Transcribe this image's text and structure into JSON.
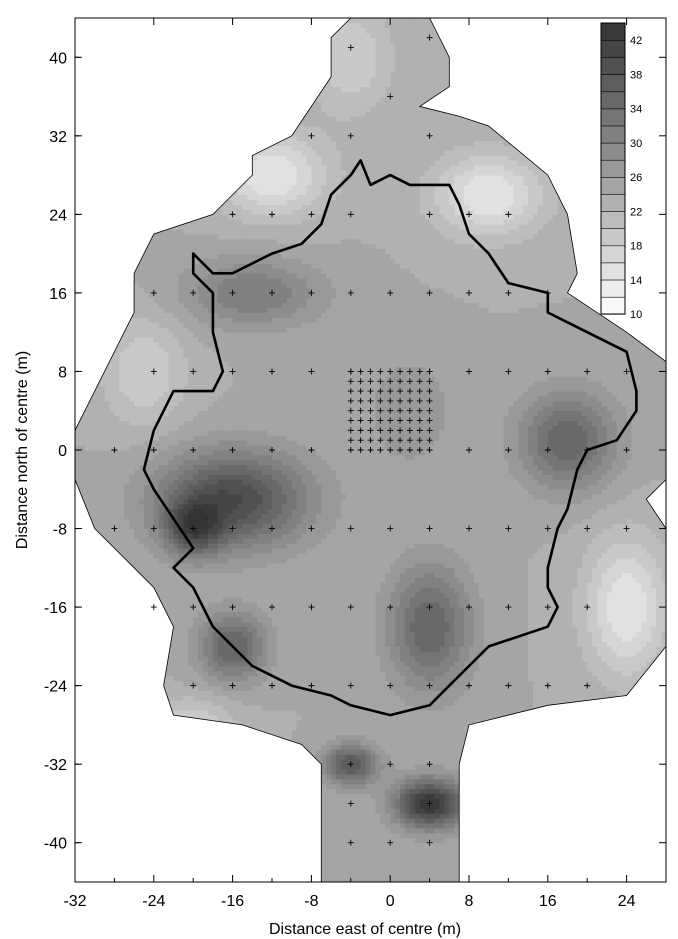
{
  "chart_data": {
    "type": "heatmap",
    "title": "",
    "xlabel": "Distance east of centre (m)",
    "ylabel": "Distance north of centre (m)",
    "xlim": [
      -32,
      28
    ],
    "ylim": [
      -44,
      44
    ],
    "x_ticks": [
      -32,
      -24,
      -16,
      -8,
      0,
      8,
      16,
      24
    ],
    "y_ticks": [
      40,
      32,
      24,
      16,
      8,
      0,
      -8,
      -16,
      -24,
      -32,
      -40
    ],
    "x_tick_labels": [
      "-32",
      "-24",
      "-16",
      "-8",
      "0",
      "8",
      "16",
      "24"
    ],
    "y_tick_labels": [
      "40",
      "32",
      "24",
      "16",
      "8",
      "0",
      "-8",
      "-16",
      "-24",
      "-32",
      "-40"
    ],
    "colorbar": {
      "levels": [
        10,
        12,
        14,
        16,
        18,
        20,
        22,
        24,
        26,
        28,
        30,
        32,
        34,
        36,
        38,
        40,
        42,
        44
      ],
      "labeled_levels": [
        42,
        38,
        34,
        30,
        26,
        22,
        18,
        14,
        10
      ],
      "labels": [
        "42",
        "38",
        "34",
        "30",
        "26",
        "22",
        "18",
        "14",
        "10"
      ],
      "low_color": "#ffffff",
      "high_color": "#333333",
      "placement": "top-right"
    },
    "survey_boundary": [
      [
        -4,
        44
      ],
      [
        4,
        44
      ],
      [
        6,
        40
      ],
      [
        6,
        37
      ],
      [
        3,
        35
      ],
      [
        7,
        34
      ],
      [
        10,
        33
      ],
      [
        16,
        28
      ],
      [
        18,
        24
      ],
      [
        19,
        18
      ],
      [
        18,
        16
      ],
      [
        24,
        12
      ],
      [
        28,
        9
      ],
      [
        28,
        -3
      ],
      [
        26,
        -5
      ],
      [
        28,
        -8
      ],
      [
        28,
        -20
      ],
      [
        24,
        -25
      ],
      [
        16,
        -26
      ],
      [
        8,
        -28
      ],
      [
        7,
        -32
      ],
      [
        7,
        -44
      ],
      [
        -7,
        -44
      ],
      [
        -7,
        -32
      ],
      [
        -9,
        -30
      ],
      [
        -15,
        -28
      ],
      [
        -22,
        -27
      ],
      [
        -23,
        -24
      ],
      [
        -22,
        -18
      ],
      [
        -24,
        -14
      ],
      [
        -26,
        -12
      ],
      [
        -30,
        -8
      ],
      [
        -32,
        -3
      ],
      [
        -32,
        2
      ],
      [
        -28,
        10
      ],
      [
        -26,
        14
      ],
      [
        -26,
        18
      ],
      [
        -24,
        22
      ],
      [
        -18,
        24
      ],
      [
        -14,
        28
      ],
      [
        -14,
        30
      ],
      [
        -10,
        32
      ],
      [
        -6,
        38
      ],
      [
        -6,
        42
      ]
    ],
    "enclosure_outline": [
      [
        -20,
        20
      ],
      [
        -18,
        18
      ],
      [
        -16,
        18
      ],
      [
        -12,
        20
      ],
      [
        -9,
        21
      ],
      [
        -7,
        23
      ],
      [
        -6,
        26
      ],
      [
        -4,
        28
      ],
      [
        -3,
        29.5
      ],
      [
        -2,
        27
      ],
      [
        0,
        28
      ],
      [
        2,
        27
      ],
      [
        4,
        27
      ],
      [
        6,
        27
      ],
      [
        7,
        25
      ],
      [
        8,
        22
      ],
      [
        10,
        20
      ],
      [
        12,
        17
      ],
      [
        16,
        16
      ],
      [
        16,
        14
      ],
      [
        20,
        12
      ],
      [
        24,
        10
      ],
      [
        25,
        6
      ],
      [
        25,
        4
      ],
      [
        23,
        1
      ],
      [
        20,
        0
      ],
      [
        19,
        -2
      ],
      [
        18,
        -6
      ],
      [
        17,
        -8
      ],
      [
        16,
        -12
      ],
      [
        16,
        -14
      ],
      [
        17,
        -16
      ],
      [
        16,
        -18
      ],
      [
        10,
        -20
      ],
      [
        8,
        -22
      ],
      [
        6,
        -24
      ],
      [
        4,
        -26
      ],
      [
        0,
        -27
      ],
      [
        -4,
        -26
      ],
      [
        -6,
        -25
      ],
      [
        -10,
        -24
      ],
      [
        -14,
        -22
      ],
      [
        -18,
        -18
      ],
      [
        -20,
        -14
      ],
      [
        -22,
        -12
      ],
      [
        -20,
        -10
      ],
      [
        -24,
        -4
      ],
      [
        -25,
        -2
      ],
      [
        -24,
        2
      ],
      [
        -22,
        6
      ],
      [
        -18,
        6
      ],
      [
        -17,
        8
      ],
      [
        -18,
        12
      ],
      [
        -18,
        16
      ],
      [
        -20,
        18
      ]
    ],
    "field_peaks": [
      {
        "x": -16,
        "y": -5,
        "value": 40,
        "sx": 5.5,
        "sy": 3.5
      },
      {
        "x": -20,
        "y": -8,
        "value": 36,
        "sx": 2,
        "sy": 2
      },
      {
        "x": 4,
        "y": -36,
        "value": 44,
        "sx": 2.5,
        "sy": 1.8
      },
      {
        "x": -4,
        "y": -32,
        "value": 38,
        "sx": 2,
        "sy": 1.5
      },
      {
        "x": 4,
        "y": -18,
        "value": 36,
        "sx": 3,
        "sy": 4.5
      },
      {
        "x": -16,
        "y": -20,
        "value": 36,
        "sx": 2.5,
        "sy": 2.5
      },
      {
        "x": 18,
        "y": 1,
        "value": 36,
        "sx": 3.5,
        "sy": 3.5
      },
      {
        "x": -14,
        "y": 16,
        "value": 32,
        "sx": 5,
        "sy": 2.5
      },
      {
        "x": 2,
        "y": 4,
        "value": 28,
        "sx": 3,
        "sy": 4
      }
    ],
    "field_troughs": [
      {
        "x": -4,
        "y": 40,
        "value": 18,
        "sx": 3,
        "sy": 4
      },
      {
        "x": -12,
        "y": 28,
        "value": 14,
        "sx": 4,
        "sy": 3
      },
      {
        "x": -25,
        "y": 8,
        "value": 18,
        "sx": 3,
        "sy": 4
      },
      {
        "x": 10,
        "y": 26,
        "value": 14,
        "sx": 4,
        "sy": 3
      },
      {
        "x": 24,
        "y": -16,
        "value": 14,
        "sx": 3,
        "sy": 5
      },
      {
        "x": -20,
        "y": -28,
        "value": 18,
        "sx": 3,
        "sy": 2
      }
    ],
    "field_background": 24,
    "sample_points": [
      [
        -4,
        41
      ],
      [
        4,
        42
      ],
      [
        0,
        36
      ],
      [
        -8,
        32
      ],
      [
        -4,
        32
      ],
      [
        4,
        32
      ],
      [
        -16,
        24
      ],
      [
        -12,
        24
      ],
      [
        -8,
        24
      ],
      [
        -4,
        24
      ],
      [
        4,
        24
      ],
      [
        8,
        24
      ],
      [
        12,
        24
      ],
      [
        -24,
        16
      ],
      [
        -20,
        16
      ],
      [
        -16,
        16
      ],
      [
        -12,
        16
      ],
      [
        -8,
        16
      ],
      [
        -4,
        16
      ],
      [
        0,
        16
      ],
      [
        4,
        16
      ],
      [
        8,
        16
      ],
      [
        12,
        16
      ],
      [
        16,
        16
      ],
      [
        -24,
        8
      ],
      [
        -20,
        8
      ],
      [
        -16,
        8
      ],
      [
        -12,
        8
      ],
      [
        -8,
        8
      ],
      [
        -4,
        8
      ],
      [
        4,
        8
      ],
      [
        8,
        8
      ],
      [
        12,
        8
      ],
      [
        16,
        8
      ],
      [
        20,
        8
      ],
      [
        24,
        8
      ],
      [
        -28,
        0
      ],
      [
        -24,
        0
      ],
      [
        -20,
        0
      ],
      [
        -16,
        0
      ],
      [
        -12,
        0
      ],
      [
        -8,
        0
      ],
      [
        8,
        0
      ],
      [
        12,
        0
      ],
      [
        16,
        0
      ],
      [
        20,
        0
      ],
      [
        24,
        0
      ],
      [
        -28,
        -8
      ],
      [
        -24,
        -8
      ],
      [
        -20,
        -8
      ],
      [
        -16,
        -8
      ],
      [
        -12,
        -8
      ],
      [
        -8,
        -8
      ],
      [
        -4,
        -8
      ],
      [
        0,
        -8
      ],
      [
        4,
        -8
      ],
      [
        8,
        -8
      ],
      [
        12,
        -8
      ],
      [
        16,
        -8
      ],
      [
        20,
        -8
      ],
      [
        24,
        -8
      ],
      [
        -24,
        -16
      ],
      [
        -20,
        -16
      ],
      [
        -16,
        -16
      ],
      [
        -12,
        -16
      ],
      [
        -8,
        -16
      ],
      [
        -4,
        -16
      ],
      [
        0,
        -16
      ],
      [
        4,
        -16
      ],
      [
        8,
        -16
      ],
      [
        12,
        -16
      ],
      [
        16,
        -16
      ],
      [
        20,
        -16
      ],
      [
        -20,
        -24
      ],
      [
        -16,
        -24
      ],
      [
        -12,
        -24
      ],
      [
        -8,
        -24
      ],
      [
        -4,
        -24
      ],
      [
        0,
        -24
      ],
      [
        4,
        -24
      ],
      [
        8,
        -24
      ],
      [
        12,
        -24
      ],
      [
        16,
        -24
      ],
      [
        20,
        -24
      ],
      [
        -4,
        -32
      ],
      [
        0,
        -32
      ],
      [
        4,
        -32
      ],
      [
        -4,
        -36
      ],
      [
        4,
        -36
      ],
      [
        -4,
        -40
      ],
      [
        0,
        -40
      ],
      [
        4,
        -40
      ]
    ],
    "dense_grid": {
      "x_range": [
        -4,
        4
      ],
      "y_range": [
        0,
        8
      ],
      "step": 1
    }
  }
}
